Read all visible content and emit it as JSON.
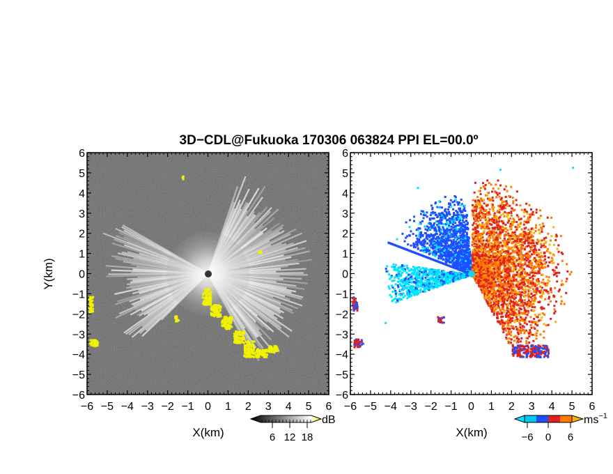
{
  "title": "3D−CDL@Fukuoka 170306 063824 PPI EL=00.0º",
  "chart_data": [
    {
      "type": "heatmap",
      "panel": "reflectivity",
      "xlabel": "X(km)",
      "ylabel": "Y(km)",
      "xlim": [
        -6,
        6
      ],
      "ylim": [
        -6,
        6
      ],
      "xticks": [
        "−6",
        "−5",
        "−4",
        "−3",
        "−2",
        "−1",
        "0",
        "1",
        "2",
        "3",
        "4",
        "5",
        "6"
      ],
      "yticks": [
        "−6",
        "−5",
        "−4",
        "−3",
        "−2",
        "−1",
        "0",
        "1",
        "2",
        "3",
        "4",
        "5",
        "6"
      ],
      "colorbar": {
        "unit": "dB",
        "ticks": [
          "6",
          "12",
          "18"
        ],
        "colors": [
          "#000000",
          "#ffffff",
          "#f0f000"
        ]
      },
      "background_color": "#2a2a2a",
      "overlay_color": "#f2f200"
    },
    {
      "type": "heatmap",
      "panel": "velocity",
      "xlabel": "X(km)",
      "xlim": [
        -6,
        6
      ],
      "ylim": [
        -6,
        6
      ],
      "xticks": [
        "−6",
        "−5",
        "−4",
        "−3",
        "−2",
        "−1",
        "0",
        "1",
        "2",
        "3",
        "4",
        "5",
        "6"
      ],
      "yticks": [
        "−6",
        "−5",
        "−4",
        "−3",
        "−2",
        "−1",
        "0",
        "1",
        "2",
        "3",
        "4",
        "5",
        "6"
      ],
      "colorbar": {
        "unit": "ms",
        "unit_sup": "−1",
        "ticks": [
          "−6",
          "0",
          "6"
        ],
        "colors": [
          "#00e5ff",
          "#1e4fff",
          "#e02020",
          "#ff7a00",
          "#ffb000"
        ]
      }
    }
  ]
}
